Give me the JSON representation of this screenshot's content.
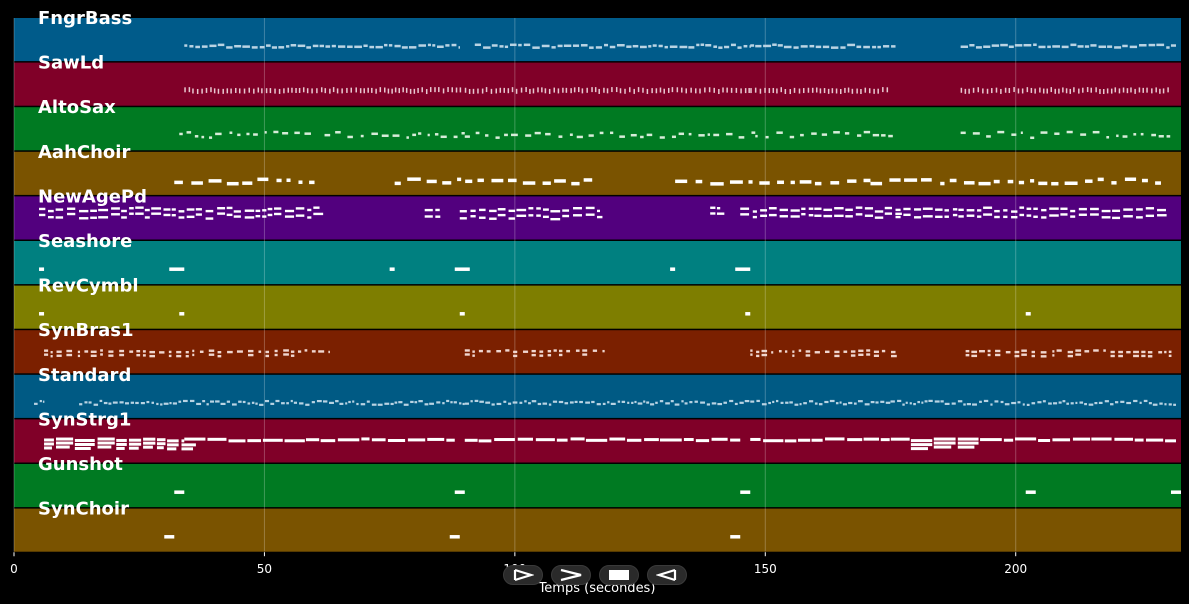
{
  "chart_data": {
    "type": "piano-roll",
    "xlabel": "Temps (secondes)",
    "xlim": [
      0,
      233
    ],
    "x_ticks": [
      0,
      50,
      100,
      150,
      200
    ],
    "grid": true,
    "tracks": [
      {
        "name": "FngrBass",
        "color": "#005b8a",
        "note_color": "#b9d3e3",
        "style": "dense",
        "segments": [
          [
            34,
            89
          ],
          [
            92,
            147
          ],
          [
            147,
            176
          ],
          [
            189,
            232
          ]
        ]
      },
      {
        "name": "SawLd",
        "color": "#800028",
        "note_color": "#e8c7d0",
        "style": "dense",
        "segments": [
          [
            34,
            90
          ],
          [
            90,
            147
          ],
          [
            147,
            175
          ],
          [
            189,
            231
          ]
        ]
      },
      {
        "name": "AltoSax",
        "color": "#007a22",
        "note_color": "#d7ecd9",
        "style": "sparse",
        "segments": [
          [
            33,
            60
          ],
          [
            62,
            90
          ],
          [
            90,
            118
          ],
          [
            119,
            148
          ],
          [
            148,
            176
          ],
          [
            189,
            232
          ]
        ]
      },
      {
        "name": "AahChoir",
        "color": "#7a5300",
        "note_color": "#ffffff",
        "style": "blocks",
        "segments": [
          [
            32,
            60
          ],
          [
            76,
            116
          ],
          [
            132,
            171
          ],
          [
            171,
            229
          ]
        ]
      },
      {
        "name": "NewAgePd",
        "color": "#52007e",
        "note_color": "#ffffff",
        "style": "chords",
        "segments": [
          [
            5,
            61
          ],
          [
            82,
            85
          ],
          [
            89,
            117
          ],
          [
            139,
            141
          ],
          [
            145,
            176
          ],
          [
            176,
            230
          ]
        ]
      },
      {
        "name": "Seashore",
        "color": "#008080",
        "note_color": "#ffffff",
        "style": "single",
        "notes": [
          [
            5,
            6
          ],
          [
            31,
            34
          ],
          [
            75,
            76
          ],
          [
            88,
            91
          ],
          [
            131,
            132
          ],
          [
            144,
            147
          ]
        ]
      },
      {
        "name": "RevCymbl",
        "color": "#7e7e00",
        "note_color": "#ffffff",
        "style": "single",
        "notes": [
          [
            5,
            6
          ],
          [
            33,
            34
          ],
          [
            89,
            90
          ],
          [
            146,
            147
          ],
          [
            202,
            203
          ]
        ]
      },
      {
        "name": "SynBras1",
        "color": "#7b2000",
        "note_color": "#f0d6cf",
        "style": "sparse-chords",
        "segments": [
          [
            6,
            63
          ],
          [
            90,
            119
          ],
          [
            147,
            176
          ],
          [
            190,
            232
          ]
        ]
      },
      {
        "name": "Standard",
        "color": "#005a84",
        "note_color": "#b9d3e3",
        "style": "drums",
        "segments": [
          [
            4,
            6
          ],
          [
            13,
            90
          ],
          [
            90,
            147
          ],
          [
            147,
            175
          ],
          [
            175,
            232
          ]
        ]
      },
      {
        "name": "SynStrg1",
        "color": "#800028",
        "note_color": "#ffffff",
        "style": "strings",
        "segments": [
          [
            6,
            34
          ],
          [
            34,
            88
          ],
          [
            90,
            145
          ],
          [
            147,
            232
          ]
        ]
      },
      {
        "name": "Gunshot",
        "color": "#007a22",
        "note_color": "#ffffff",
        "style": "single",
        "notes": [
          [
            32,
            34
          ],
          [
            88,
            90
          ],
          [
            145,
            147
          ],
          [
            202,
            204
          ],
          [
            231,
            233
          ]
        ]
      },
      {
        "name": "SynChoir",
        "color": "#7a5300",
        "note_color": "#ffffff",
        "style": "single",
        "notes": [
          [
            30,
            32
          ],
          [
            87,
            89
          ],
          [
            143,
            145
          ]
        ]
      }
    ]
  },
  "controls": [
    {
      "name": "play-button",
      "icon": "play-icon"
    },
    {
      "name": "fast-forward-button",
      "icon": "fast-forward-icon"
    },
    {
      "name": "stop-button",
      "icon": "stop-icon"
    },
    {
      "name": "rewind-button",
      "icon": "rewind-icon"
    }
  ]
}
